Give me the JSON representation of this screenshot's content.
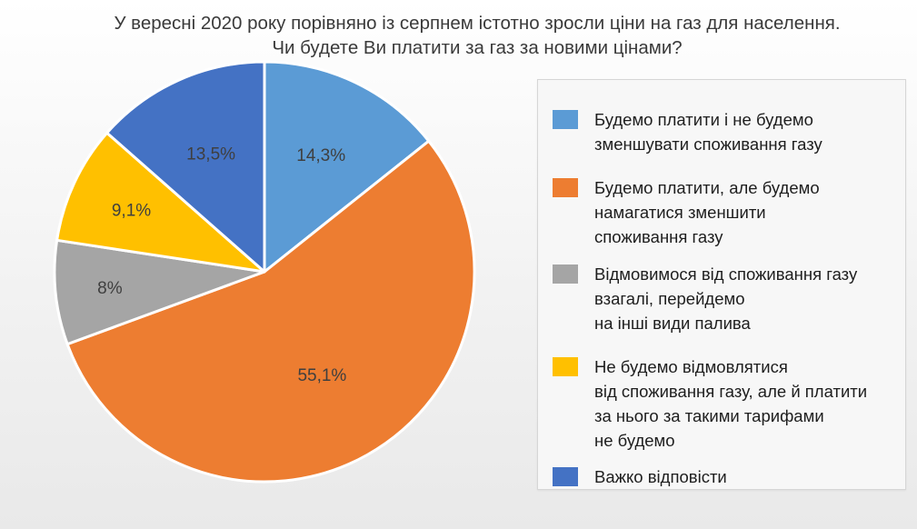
{
  "title": {
    "line1": "У вересні 2020 року порівняно  із серпнем істотно зросли ціни на газ для населення.",
    "line2": "Чи будете Ви платити за газ за новими цінами?"
  },
  "chart_data": {
    "type": "pie",
    "title": "У вересні 2020 року порівняно  із серпнем істотно зросли ціни на газ для населення. Чи будете Ви платити за газ за новими цінами?",
    "legend_position": "right",
    "slices": [
      {
        "label": "Будемо платити і не будемо зменшувати споживання газу",
        "value": 14.3,
        "display": "14,3%",
        "color": "#5b9bd5"
      },
      {
        "label": "Будемо платити, але будемо намагатися зменшити споживання  газу",
        "value": 55.1,
        "display": "55,1%",
        "color": "#ed7d31"
      },
      {
        "label": "Відмовимося від споживання газу взагалі, перейдемо на інші види палива",
        "value": 8,
        "display": "8%",
        "color": "#a5a5a5"
      },
      {
        "label": "Не будемо відмовлятися від споживання газу, але й платити за нього за такими тарифами не будемо",
        "value": 9.1,
        "display": "9,1%",
        "color": "#ffc000"
      },
      {
        "label": "Важко відповісти",
        "value": 13.5,
        "display": "13,5%",
        "color": "#4472c4"
      }
    ]
  },
  "legend": {
    "items": [
      {
        "text": "Будемо платити і не будемо\nзменшувати споживання газу",
        "color": "#5b9bd5"
      },
      {
        "text": "Будемо платити, але будемо\nнамагатися зменшити\nспоживання  газу",
        "color": "#ed7d31"
      },
      {
        "text": "Відмовимося від споживання газу\nвзагалі, перейдемо\nна інші види палива",
        "color": "#a5a5a5"
      },
      {
        "text": "Не будемо відмовлятися\nвід споживання газу, але й платити\nза нього за такими тарифами\nне будемо",
        "color": "#ffc000"
      },
      {
        "text": "Важко відповісти",
        "color": "#4472c4"
      }
    ]
  }
}
